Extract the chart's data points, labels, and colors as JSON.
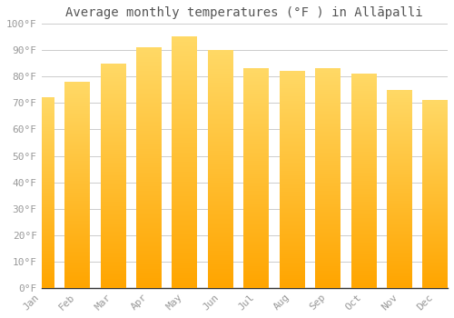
{
  "title": "Average monthly temperatures (°F ) in Allāpalli",
  "months": [
    "Jan",
    "Feb",
    "Mar",
    "Apr",
    "May",
    "Jun",
    "Jul",
    "Aug",
    "Sep",
    "Oct",
    "Nov",
    "Dec"
  ],
  "values": [
    72,
    78,
    85,
    91,
    95,
    90,
    83,
    82,
    83,
    81,
    75,
    71
  ],
  "bar_color_top": "#FFD966",
  "bar_color_bottom": "#FFA500",
  "background_color": "#FFFFFF",
  "grid_color": "#CCCCCC",
  "ylim": [
    0,
    100
  ],
  "yticks": [
    0,
    10,
    20,
    30,
    40,
    50,
    60,
    70,
    80,
    90,
    100
  ],
  "ytick_labels": [
    "0°F",
    "10°F",
    "20°F",
    "30°F",
    "40°F",
    "50°F",
    "60°F",
    "70°F",
    "80°F",
    "90°F",
    "100°F"
  ],
  "title_fontsize": 10,
  "tick_fontsize": 8,
  "tick_color": "#999999",
  "font_family": "monospace",
  "bar_width": 0.7
}
